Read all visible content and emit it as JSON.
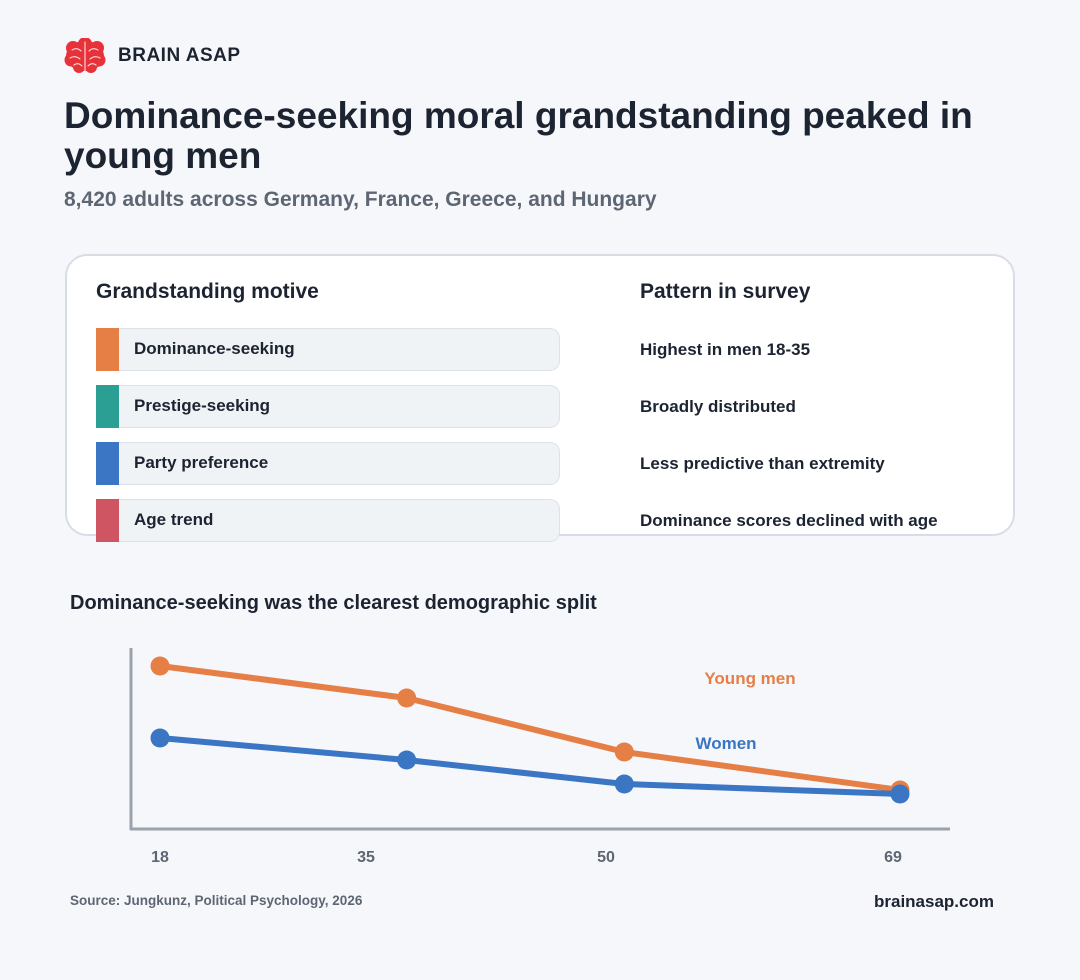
{
  "brand": {
    "name": "BRAIN ASAP",
    "logo_icon": "brain-icon",
    "logo_color": "#e8323a"
  },
  "header": {
    "title": "Dominance-seeking moral grandstanding peaked in young men",
    "subtitle": "8,420 adults across Germany, France, Greece, and Hungary"
  },
  "table": {
    "col_left": "Grandstanding motive",
    "col_right": "Pattern in survey",
    "rows": [
      {
        "motive": "Dominance-seeking",
        "pattern": "Highest in men 18-35",
        "color": "#e57f45"
      },
      {
        "motive": "Prestige-seeking",
        "pattern": "Broadly distributed",
        "color": "#2c9f94"
      },
      {
        "motive": "Party preference",
        "pattern": "Less predictive than extremity",
        "color": "#3a76c4"
      },
      {
        "motive": "Age trend",
        "pattern": "Dominance scores declined with age",
        "color": "#d05562"
      }
    ]
  },
  "chart_title": "Dominance-seeking was the clearest demographic split",
  "chart_data": {
    "type": "line",
    "x": [
      18,
      35,
      50,
      69
    ],
    "xticks": [
      "18",
      "35",
      "50",
      "69"
    ],
    "xlim": [
      18,
      69
    ],
    "ylim": [
      0,
      1
    ],
    "series": [
      {
        "name": "Young men",
        "values": [
          0.82,
          0.66,
          0.39,
          0.2
        ],
        "color": "#e57f45"
      },
      {
        "name": "Women",
        "values": [
          0.46,
          0.35,
          0.23,
          0.18
        ],
        "color": "#3a76c4"
      }
    ],
    "title": "",
    "xlabel": "",
    "ylabel": "",
    "grid": false,
    "legend": "inline labels"
  },
  "footer": {
    "source": "Source: Jungkunz, Political Psychology, 2026",
    "site": "brainasap.com"
  }
}
